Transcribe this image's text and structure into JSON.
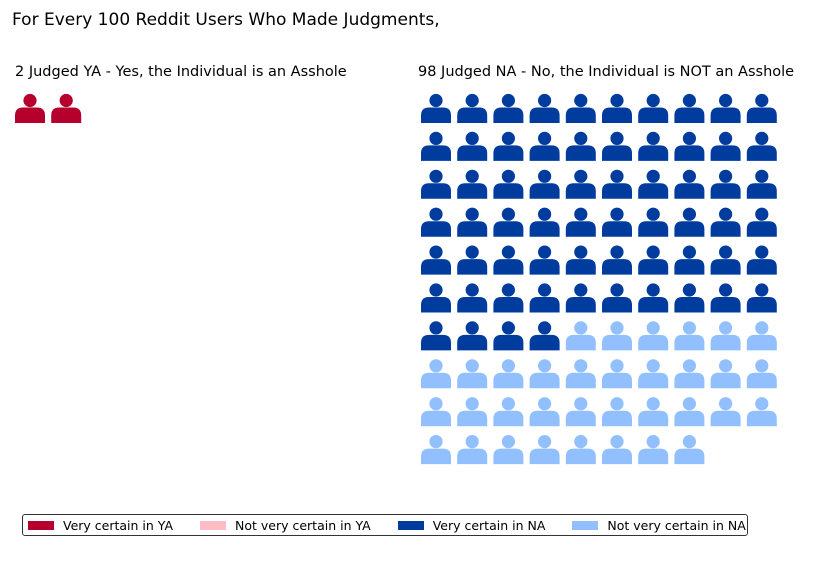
{
  "chart_data": {
    "type": "waffle",
    "title": "For Every 100 Reddit Users Who Made Judgments,",
    "panels": [
      {
        "key": "ya",
        "title": "2 Judged YA - Yes, the Individual is an Asshole",
        "total": 2,
        "groups": [
          {
            "label": "Very certain in YA",
            "count": 2,
            "color": "#b5002e"
          },
          {
            "label": "Not very certain in YA",
            "count": 0,
            "color": "#ffbcc4"
          }
        ]
      },
      {
        "key": "na",
        "title": "98 Judged NA - No, the Individual is NOT an Asshole",
        "total": 98,
        "groups": [
          {
            "label": "Very certain in NA",
            "count": 64,
            "color": "#003c9e"
          },
          {
            "label": "Not very certain in NA",
            "count": 34,
            "color": "#92c0ff"
          }
        ]
      }
    ],
    "legend": [
      {
        "label": "Very certain in YA",
        "color": "#b5002e"
      },
      {
        "label": "Not very certain in YA",
        "color": "#ffbcc4"
      },
      {
        "label": "Very certain in NA",
        "color": "#003c9e"
      },
      {
        "label": "Not very certain in NA",
        "color": "#92c0ff"
      }
    ],
    "icon": "person-icon",
    "legend_position": "bottom-left"
  }
}
